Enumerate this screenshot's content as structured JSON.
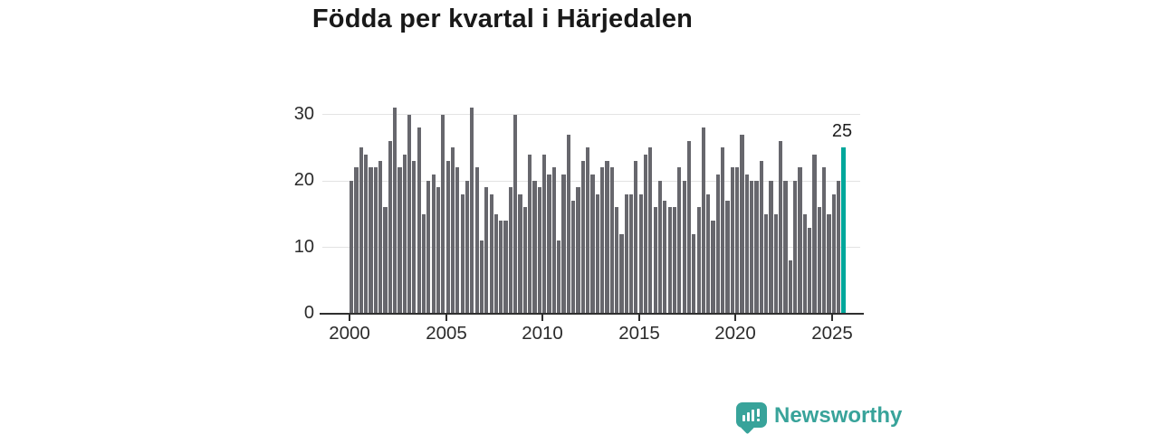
{
  "title": "Födda per kvartal i Härjedalen",
  "y_axis": [
    "30",
    "20",
    "10",
    "0"
  ],
  "x_axis": [
    "2000",
    "2005",
    "2010",
    "2015",
    "2020",
    "2025"
  ],
  "annotation": {
    "label": "25"
  },
  "logo": {
    "text": "Newsworthy",
    "icon": "newsworthy-speech-bubble-barchart-icon"
  },
  "colors": {
    "bar": "#67676d",
    "highlight": "#00a79b",
    "logo_teal": "#38a39a",
    "title_text": "#191919",
    "axis_text": "#2b2b2b",
    "gridline": "#e3e3e3"
  },
  "chart_data": {
    "type": "bar",
    "title": "Födda per kvartal i Härjedalen",
    "xlabel": "",
    "ylabel": "",
    "frequency": "quarterly",
    "x_tick_labels": [
      "2000",
      "2005",
      "2010",
      "2015",
      "2020",
      "2025"
    ],
    "y_ticks": [
      0,
      10,
      20,
      30
    ],
    "ylim": [
      0,
      32
    ],
    "grid": "horizontal",
    "legend": "none",
    "highlight": {
      "period": "2025 Q3",
      "value": 25,
      "label": "25",
      "color": "#00a79b",
      "position": "last-bar"
    },
    "years": [
      {
        "year": 2000,
        "values": [
          20,
          22,
          25,
          24
        ]
      },
      {
        "year": 2001,
        "values": [
          22,
          22,
          23,
          16
        ]
      },
      {
        "year": 2002,
        "values": [
          26,
          31,
          22,
          24
        ]
      },
      {
        "year": 2003,
        "values": [
          30,
          23,
          28,
          15
        ]
      },
      {
        "year": 2004,
        "values": [
          20,
          21,
          19,
          30
        ]
      },
      {
        "year": 2005,
        "values": [
          23,
          25,
          22,
          18
        ]
      },
      {
        "year": 2006,
        "values": [
          20,
          31,
          22,
          11
        ]
      },
      {
        "year": 2007,
        "values": [
          19,
          18,
          15,
          14
        ]
      },
      {
        "year": 2008,
        "values": [
          14,
          19,
          30,
          18
        ]
      },
      {
        "year": 2009,
        "values": [
          16,
          24,
          20,
          19
        ]
      },
      {
        "year": 2010,
        "values": [
          24,
          21,
          22,
          11
        ]
      },
      {
        "year": 2011,
        "values": [
          21,
          27,
          17,
          19
        ]
      },
      {
        "year": 2012,
        "values": [
          23,
          25,
          21,
          18
        ]
      },
      {
        "year": 2013,
        "values": [
          22,
          23,
          22,
          16
        ]
      },
      {
        "year": 2014,
        "values": [
          12,
          18,
          18,
          23
        ]
      },
      {
        "year": 2015,
        "values": [
          18,
          24,
          25,
          16
        ]
      },
      {
        "year": 2016,
        "values": [
          20,
          17,
          16,
          16
        ]
      },
      {
        "year": 2017,
        "values": [
          22,
          20,
          26,
          12
        ]
      },
      {
        "year": 2018,
        "values": [
          16,
          28,
          18,
          14
        ]
      },
      {
        "year": 2019,
        "values": [
          21,
          25,
          17,
          22
        ]
      },
      {
        "year": 2020,
        "values": [
          22,
          27,
          21,
          20
        ]
      },
      {
        "year": 2021,
        "values": [
          20,
          23,
          15,
          20
        ]
      },
      {
        "year": 2022,
        "values": [
          15,
          26,
          20,
          8
        ]
      },
      {
        "year": 2023,
        "values": [
          20,
          22,
          15,
          13
        ]
      },
      {
        "year": 2024,
        "values": [
          24,
          16,
          22,
          15
        ]
      },
      {
        "year": 2025,
        "values": [
          18,
          20,
          25
        ]
      }
    ]
  }
}
